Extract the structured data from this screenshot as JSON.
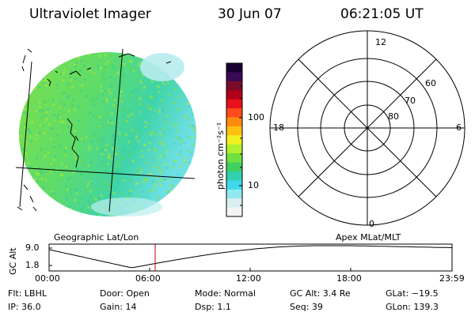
{
  "header": {
    "title": "Ultraviolet Imager",
    "date": "30 Jun 07",
    "time": "06:21:05 UT"
  },
  "colorbar": {
    "unit_label": "photon cm⁻²s⁻¹",
    "tick_labels": [
      "100",
      "10"
    ],
    "colors": [
      "#1a0030",
      "#3a0a55",
      "#7a0a2a",
      "#b0001a",
      "#e8101a",
      "#ff4a1a",
      "#ff8a10",
      "#ffc010",
      "#f0f020",
      "#b0f030",
      "#70e040",
      "#40d060",
      "#30d0b0",
      "#40d8e8",
      "#90e8f0",
      "#d8eef0",
      "#f4f4f4"
    ]
  },
  "geo_panel": {
    "label": "Geographic Lat/Lon"
  },
  "apex_panel": {
    "label": "Apex MLat/MLT",
    "mlt_labels": {
      "top": "12",
      "left": "18",
      "right": "6",
      "bottom": "0"
    },
    "lat_labels": [
      "60",
      "70",
      "80"
    ]
  },
  "altitude_plot": {
    "axis_label": "GC Alt",
    "y_ticks": [
      "9.0",
      "1.8"
    ],
    "x_ticks": [
      "00:00",
      "06:00",
      "12:00",
      "18:00",
      "23:59"
    ]
  },
  "info": {
    "filter": "Flt: LBHL",
    "ip": "IP: 36.0",
    "door": "Door: Open",
    "gain": "Gain: 14",
    "mode": "Mode: Normal",
    "dsp": "Dsp:     1.1",
    "gc_alt": "GC Alt: 3.4 Re",
    "seq": "Seq: 39",
    "glat": "GLat: −19.5",
    "glon": "GLon: 139.3"
  }
}
